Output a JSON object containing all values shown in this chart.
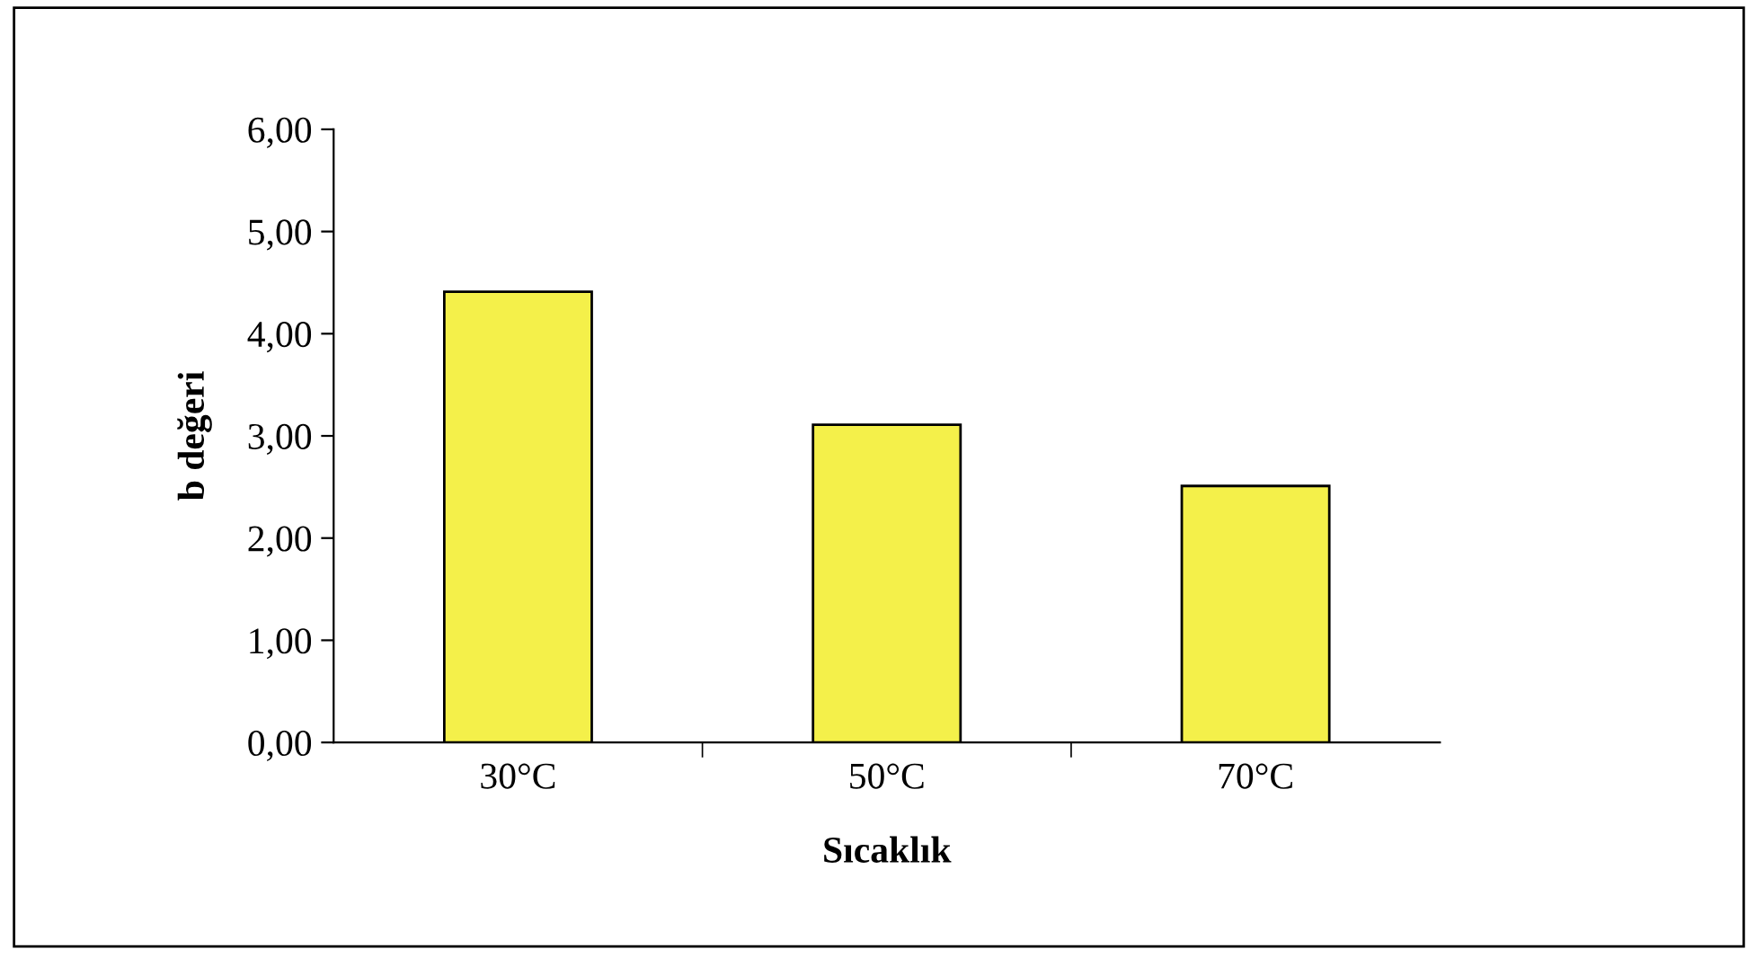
{
  "chart_data": {
    "type": "bar",
    "xlabel": "Sıcaklık",
    "ylabel": "b değeri",
    "categories": [
      "30°C",
      "50°C",
      "70°C"
    ],
    "values": [
      4.41,
      3.11,
      2.51
    ],
    "color": "#f4f04a",
    "ylim": [
      0,
      6
    ],
    "yticks": [
      {
        "value": 0,
        "label": "0,00"
      },
      {
        "value": 1,
        "label": "1,00"
      },
      {
        "value": 2,
        "label": "2,00"
      },
      {
        "value": 3,
        "label": "3,00"
      },
      {
        "value": 4,
        "label": "4,00"
      },
      {
        "value": 5,
        "label": "5,00"
      },
      {
        "value": 6,
        "label": "6,00"
      }
    ],
    "grid": false
  }
}
